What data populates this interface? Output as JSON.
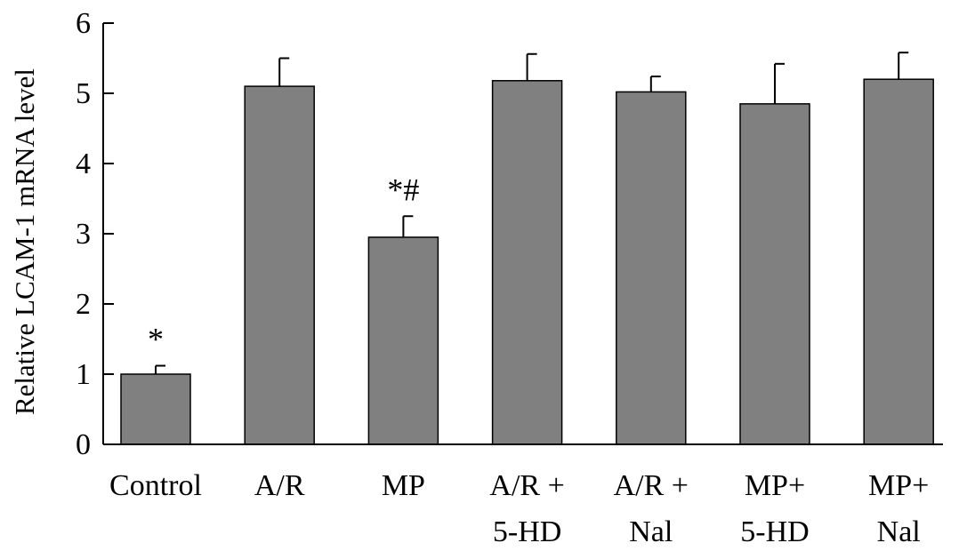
{
  "chart_data": {
    "type": "bar",
    "title": "",
    "xlabel": "",
    "ylabel": "Relative LCAM-1 mRNA level",
    "ylim": [
      0,
      6
    ],
    "yticks": [
      "0",
      "1",
      "2",
      "3",
      "4",
      "5",
      "6"
    ],
    "grid": false,
    "categories": [
      [
        "Control"
      ],
      [
        "A/R"
      ],
      [
        "MP"
      ],
      [
        "A/R +",
        "5-HD"
      ],
      [
        "A/R +",
        "Nal"
      ],
      [
        "MP+",
        "5-HD"
      ],
      [
        "MP+",
        "Nal"
      ]
    ],
    "values": [
      1.0,
      5.1,
      2.95,
      5.18,
      5.02,
      4.85,
      5.2
    ],
    "errors": [
      0.12,
      0.4,
      0.3,
      0.38,
      0.22,
      0.57,
      0.38
    ],
    "annotations": [
      "*",
      "",
      "*#",
      "",
      "",
      "",
      ""
    ],
    "bar_color": "#808080",
    "bar_edge_color": "#000000"
  }
}
